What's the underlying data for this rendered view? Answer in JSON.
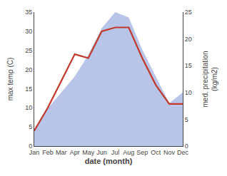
{
  "chart_data": {
    "type": "line",
    "xlabel": "date (month)",
    "ylabel": "max temp (C)",
    "y2label": "med. precipitation\n(kg/m2)",
    "categories": [
      "Jan",
      "Feb",
      "Mar",
      "Apr",
      "May",
      "Jun",
      "Jul",
      "Aug",
      "Sep",
      "Oct",
      "Nov",
      "Dec"
    ],
    "series": [
      {
        "type": "area",
        "axis": "y2",
        "color": "#b8c4e8",
        "values": [
          3,
          7,
          10,
          13,
          17,
          22,
          25,
          24,
          18,
          13,
          8,
          10
        ]
      },
      {
        "type": "line",
        "color": "#c0392b",
        "values": [
          4,
          10,
          17,
          24,
          23,
          30,
          31,
          31,
          23,
          16,
          11,
          11
        ]
      }
    ],
    "ylim": [
      0,
      35
    ],
    "yticks": [
      0,
      5,
      10,
      15,
      20,
      25,
      30,
      35
    ],
    "y2lim": [
      0,
      25
    ],
    "y2ticks": [
      0,
      5,
      10,
      15,
      20,
      25
    ],
    "grid": false
  }
}
